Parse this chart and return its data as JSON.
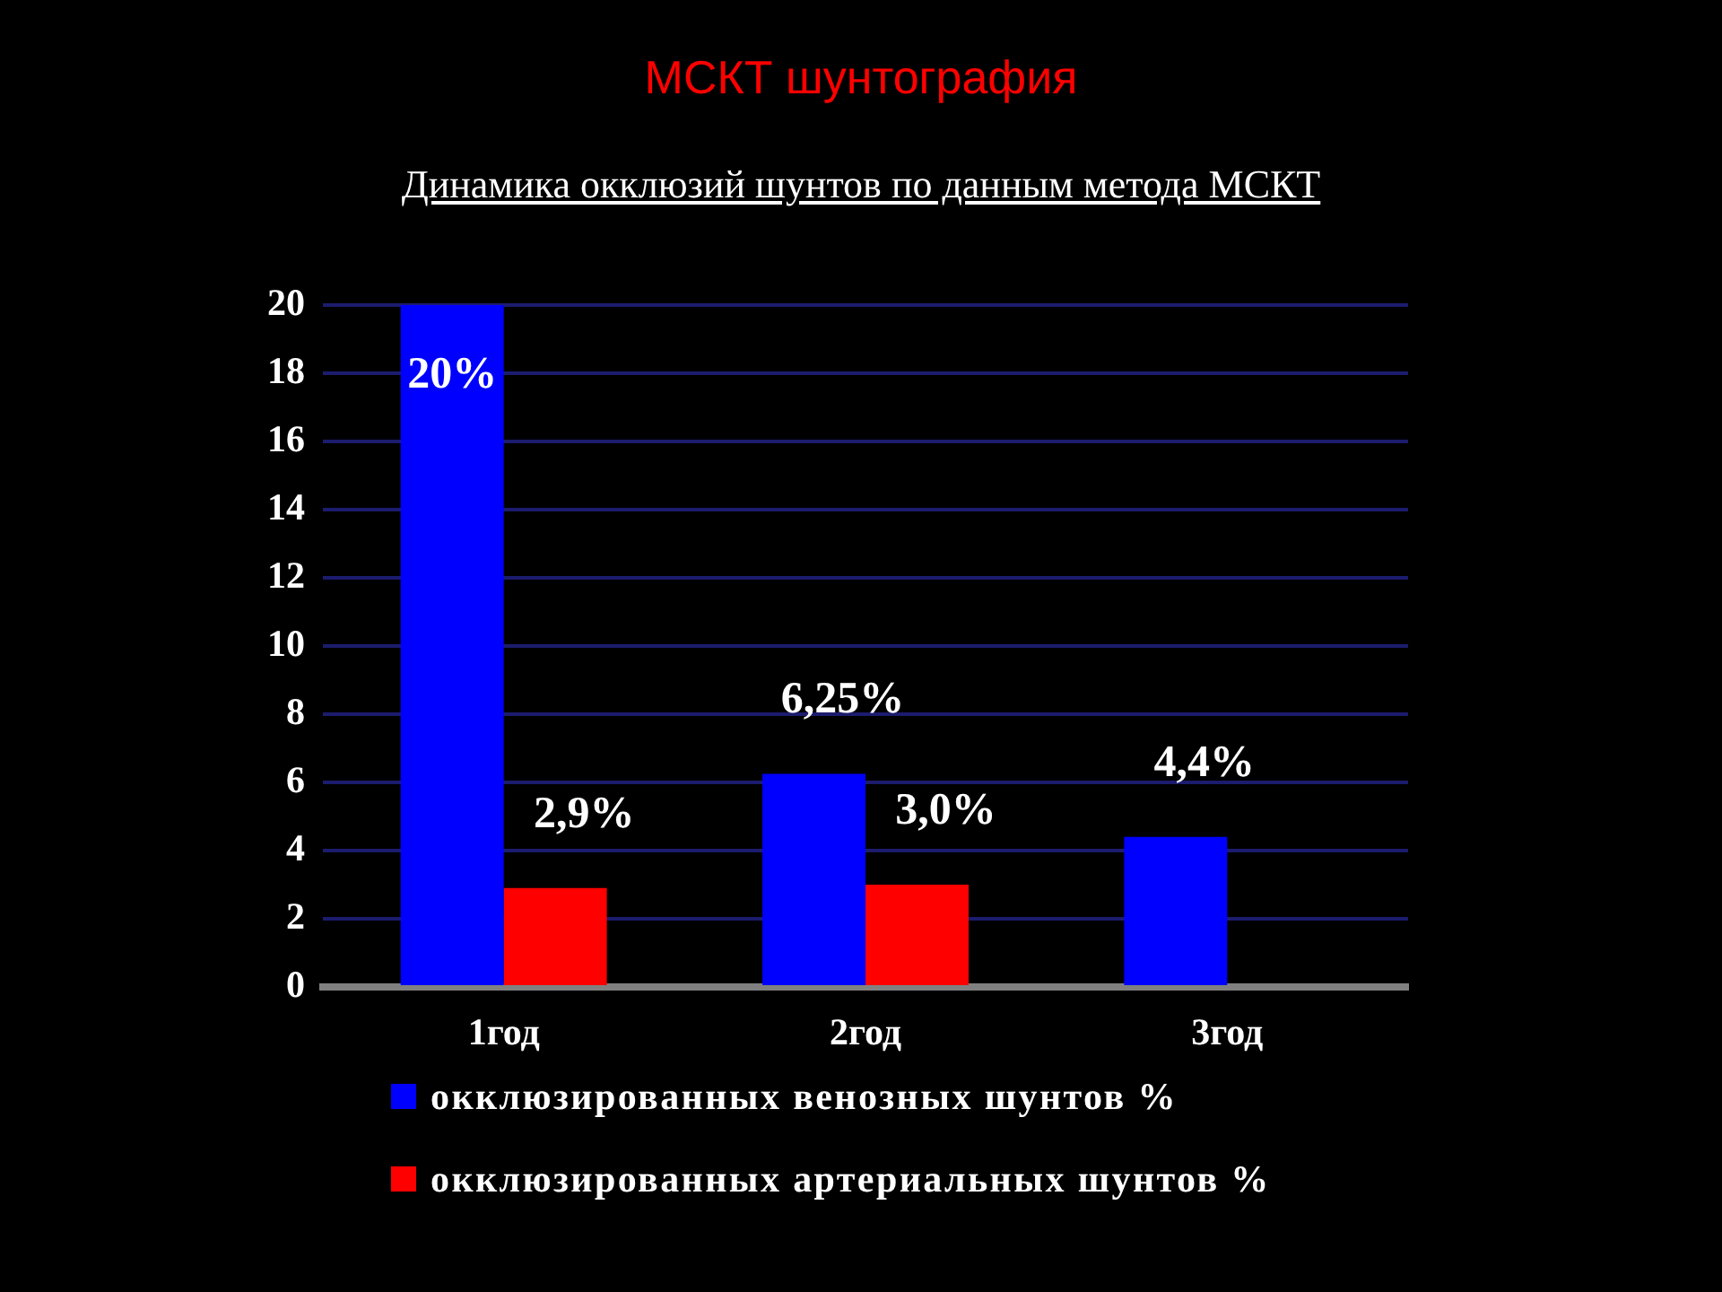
{
  "chart_data": {
    "type": "bar",
    "title": "МСКТ шунтография",
    "subtitle": "Динамика окклюзий шунтов по данным метода МСКТ",
    "categories": [
      "1год",
      "2год",
      "3год"
    ],
    "series": [
      {
        "name": "окклюзированных венозных шунтов %",
        "color": "#0000ff",
        "values": [
          20,
          6.25,
          4.4
        ],
        "value_labels": [
          "20%",
          "6,25%",
          "4,4%"
        ]
      },
      {
        "name": "окклюзированных артериальных шунтов %",
        "color": "#ff0000",
        "values": [
          2.9,
          3.0,
          0
        ],
        "value_labels": [
          "2,9%",
          "3,0%",
          null
        ]
      }
    ],
    "ylim": [
      0,
      20
    ],
    "yticks": [
      0,
      2,
      4,
      6,
      8,
      10,
      12,
      14,
      16,
      18,
      20
    ],
    "grid": "y",
    "legend": "bottom"
  }
}
